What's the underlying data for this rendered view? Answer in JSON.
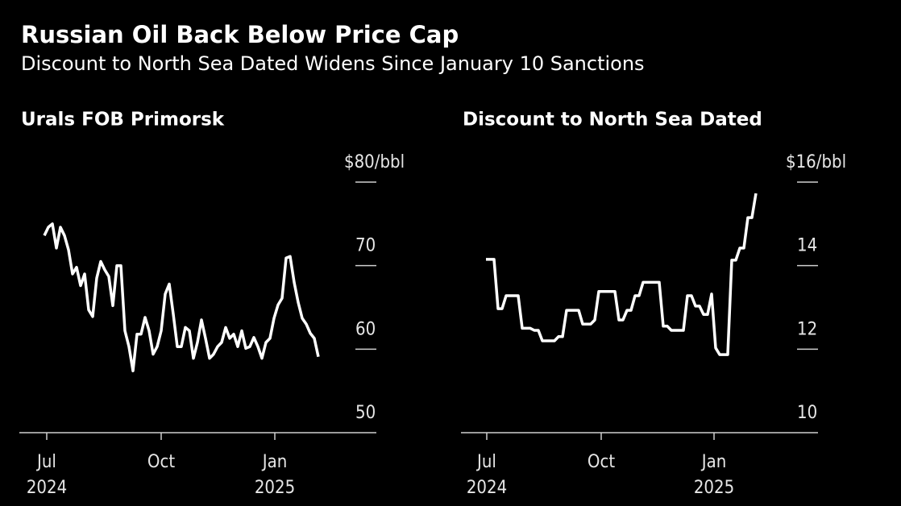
{
  "header": {
    "title": "Russian Oil Back Below Price Cap",
    "subtitle": "Discount to North Sea Dated Widens Since January 10 Sanctions"
  },
  "chart_data": [
    {
      "type": "line",
      "title": "Urals FOB Primorsk",
      "color": "#ffffff",
      "values": [
        73.6,
        74.6,
        75.0,
        72.1,
        74.6,
        73.6,
        71.9,
        69.0,
        69.8,
        67.6,
        69.0,
        64.7,
        63.9,
        68.5,
        70.5,
        69.5,
        68.7,
        65.2,
        70.0,
        70.0,
        62.2,
        60.3,
        57.4,
        61.8,
        61.8,
        63.8,
        62.2,
        59.4,
        60.3,
        62.2,
        66.6,
        67.8,
        64.2,
        60.3,
        60.3,
        62.6,
        62.2,
        58.9,
        60.8,
        63.5,
        61.3,
        58.9,
        59.4,
        60.3,
        60.8,
        62.6,
        61.3,
        61.8,
        60.3,
        62.2,
        60.1,
        60.3,
        61.4,
        60.3,
        58.9,
        60.8,
        61.3,
        63.7,
        65.3,
        66.1,
        70.9,
        71.1,
        68.0,
        65.6,
        63.7,
        63.0,
        61.9,
        61.3,
        59.1
      ],
      "xlim": [
        -6.2,
        82.4
      ],
      "xticks": [
        {
          "value": 0.6,
          "label": "Jul"
        },
        {
          "value": 29,
          "label": "Oct"
        },
        {
          "value": 57.2,
          "label": "Jan"
        }
      ],
      "year_labels": [
        {
          "value": 0.6,
          "label": "2024"
        },
        {
          "value": 57.2,
          "label": "2025"
        }
      ],
      "ylim": [
        50,
        80
      ],
      "yticks": [
        50,
        60,
        70,
        {
          "value": 80,
          "label": "$80/bbl"
        }
      ]
    },
    {
      "type": "line",
      "title": "Discount to North Sea Dated",
      "color": "#ffffff",
      "values": [
        14.15,
        14.15,
        14.15,
        12.97,
        12.97,
        13.28,
        13.28,
        13.28,
        13.28,
        12.5,
        12.5,
        12.5,
        12.45,
        12.45,
        12.2,
        12.2,
        12.2,
        12.2,
        12.3,
        12.3,
        12.93,
        12.93,
        12.93,
        12.93,
        12.6,
        12.6,
        12.6,
        12.7,
        13.38,
        13.38,
        13.38,
        13.38,
        13.38,
        12.7,
        12.7,
        12.93,
        12.93,
        13.28,
        13.28,
        13.6,
        13.6,
        13.6,
        13.6,
        13.6,
        12.55,
        12.55,
        12.45,
        12.45,
        12.45,
        12.45,
        13.28,
        13.28,
        13.03,
        13.03,
        12.83,
        12.83,
        13.32,
        12.03,
        11.87,
        11.87,
        11.87,
        14.13,
        14.13,
        14.42,
        14.42,
        15.15,
        15.15,
        15.73
      ],
      "xlim": [
        -6.2,
        82.4
      ],
      "xticks": [
        {
          "value": 0.2,
          "label": "Jul"
        },
        {
          "value": 28.6,
          "label": "Oct"
        },
        {
          "value": 56.6,
          "label": "Jan"
        }
      ],
      "year_labels": [
        {
          "value": 0.2,
          "label": "2024"
        },
        {
          "value": 56.6,
          "label": "2025"
        }
      ],
      "ylim": [
        10,
        16
      ],
      "yticks": [
        10,
        12,
        14,
        {
          "value": 16,
          "label": "$16/bbl"
        }
      ]
    }
  ]
}
